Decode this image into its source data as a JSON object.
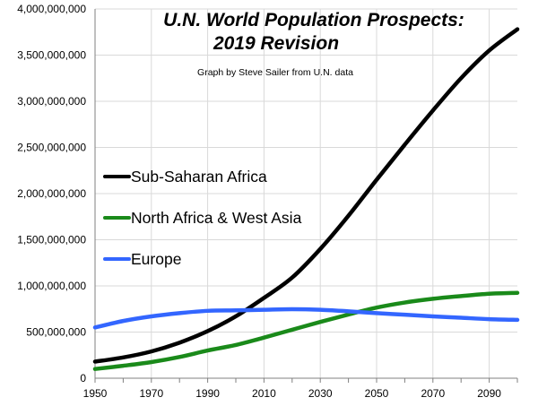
{
  "chart_data": {
    "type": "line",
    "title_line1": "U.N. World Population Prospects:",
    "title_line2": "2019 Revision",
    "subtitle": "Graph by Steve Sailer from U.N. data",
    "xlabel": "",
    "ylabel": "",
    "xlim": [
      1950,
      2100
    ],
    "ylim": [
      0,
      4000000000
    ],
    "grid": true,
    "legend_placement": "left",
    "x_ticks": [
      1950,
      1970,
      1990,
      2010,
      2030,
      2050,
      2070,
      2090
    ],
    "y_ticks": [
      0,
      500000000,
      1000000000,
      1500000000,
      2000000000,
      2500000000,
      3000000000,
      3500000000,
      4000000000
    ],
    "y_tick_labels": [
      "0",
      "500,000,000",
      "1,000,000,000",
      "1,500,000,000",
      "2,000,000,000",
      "2,500,000,000",
      "3,000,000,000",
      "3,500,000,000",
      "4,000,000,000"
    ],
    "x": [
      1950,
      1960,
      1970,
      1980,
      1990,
      2000,
      2010,
      2020,
      2030,
      2040,
      2050,
      2060,
      2070,
      2080,
      2090,
      2100
    ],
    "series": [
      {
        "name": "Sub-Saharan Africa",
        "color": "#000000",
        "values": [
          180000000,
          225000000,
          290000000,
          385000000,
          510000000,
          670000000,
          870000000,
          1090000000,
          1400000000,
          1760000000,
          2150000000,
          2530000000,
          2900000000,
          3250000000,
          3550000000,
          3780000000
        ]
      },
      {
        "name": "North Africa & West Asia",
        "color": "#1a8a1a",
        "values": [
          100000000,
          135000000,
          175000000,
          230000000,
          300000000,
          360000000,
          440000000,
          525000000,
          610000000,
          690000000,
          765000000,
          820000000,
          860000000,
          890000000,
          915000000,
          925000000
        ]
      },
      {
        "name": "Europe",
        "color": "#3366ff",
        "values": [
          550000000,
          620000000,
          670000000,
          705000000,
          730000000,
          735000000,
          742000000,
          748000000,
          742000000,
          725000000,
          705000000,
          688000000,
          670000000,
          655000000,
          640000000,
          632000000
        ]
      }
    ]
  }
}
